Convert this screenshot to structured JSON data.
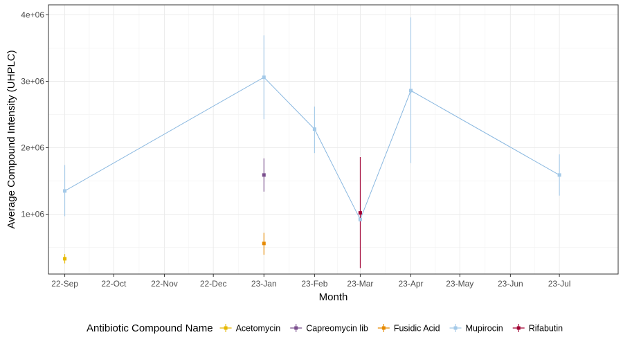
{
  "chart_data": {
    "type": "line",
    "xlabel": "Month",
    "ylabel": "Average Compound Intensity (UHPLC)",
    "x_ticks": [
      "22-Sep",
      "22-Oct",
      "22-Nov",
      "22-Dec",
      "23-Jan",
      "23-Feb",
      "23-Mar",
      "23-Apr",
      "23-May",
      "23-Jun",
      "23-Jul"
    ],
    "x_range": [
      "2022-08-22",
      "2023-08-06"
    ],
    "y_ticks": [
      {
        "value": 1000000,
        "label": "1e+06"
      },
      {
        "value": 2000000,
        "label": "2e+06"
      },
      {
        "value": 3000000,
        "label": "3e+06"
      },
      {
        "value": 4000000,
        "label": "4e+06"
      }
    ],
    "ylim": [
      100000,
      4150000
    ],
    "grid": true,
    "legend": {
      "title": "Antibiotic Compound Name",
      "position": "bottom"
    },
    "series": [
      {
        "name": "Acetomycin",
        "color": "#e6b800",
        "points": [
          {
            "x": "2022-09-01",
            "y": 330000,
            "low": 260000,
            "high": 400000
          }
        ]
      },
      {
        "name": "Capreomycin lib",
        "color": "#7b4f8e",
        "points": [
          {
            "x": "2023-01-01",
            "y": 1590000,
            "low": 1340000,
            "high": 1840000
          }
        ]
      },
      {
        "name": "Fusidic Acid",
        "color": "#e68a00",
        "points": [
          {
            "x": "2023-01-01",
            "y": 560000,
            "low": 390000,
            "high": 720000
          }
        ]
      },
      {
        "name": "Mupirocin",
        "color": "#a3c9e8",
        "line": true,
        "points": [
          {
            "x": "2022-09-01",
            "y": 1350000,
            "low": 970000,
            "high": 1740000
          },
          {
            "x": "2023-01-01",
            "y": 3060000,
            "low": 2430000,
            "high": 3690000
          },
          {
            "x": "2023-02-01",
            "y": 2280000,
            "low": 1920000,
            "high": 2620000
          },
          {
            "x": "2023-03-01",
            "y": 920000,
            "low": 880000,
            "high": 960000
          },
          {
            "x": "2023-04-01",
            "y": 2860000,
            "low": 1770000,
            "high": 3960000
          },
          {
            "x": "2023-07-01",
            "y": 1590000,
            "low": 1280000,
            "high": 1900000
          }
        ]
      },
      {
        "name": "Rifabutin",
        "color": "#a00032",
        "points": [
          {
            "x": "2023-03-01",
            "y": 1020000,
            "low": 190000,
            "high": 1860000
          }
        ]
      }
    ]
  }
}
